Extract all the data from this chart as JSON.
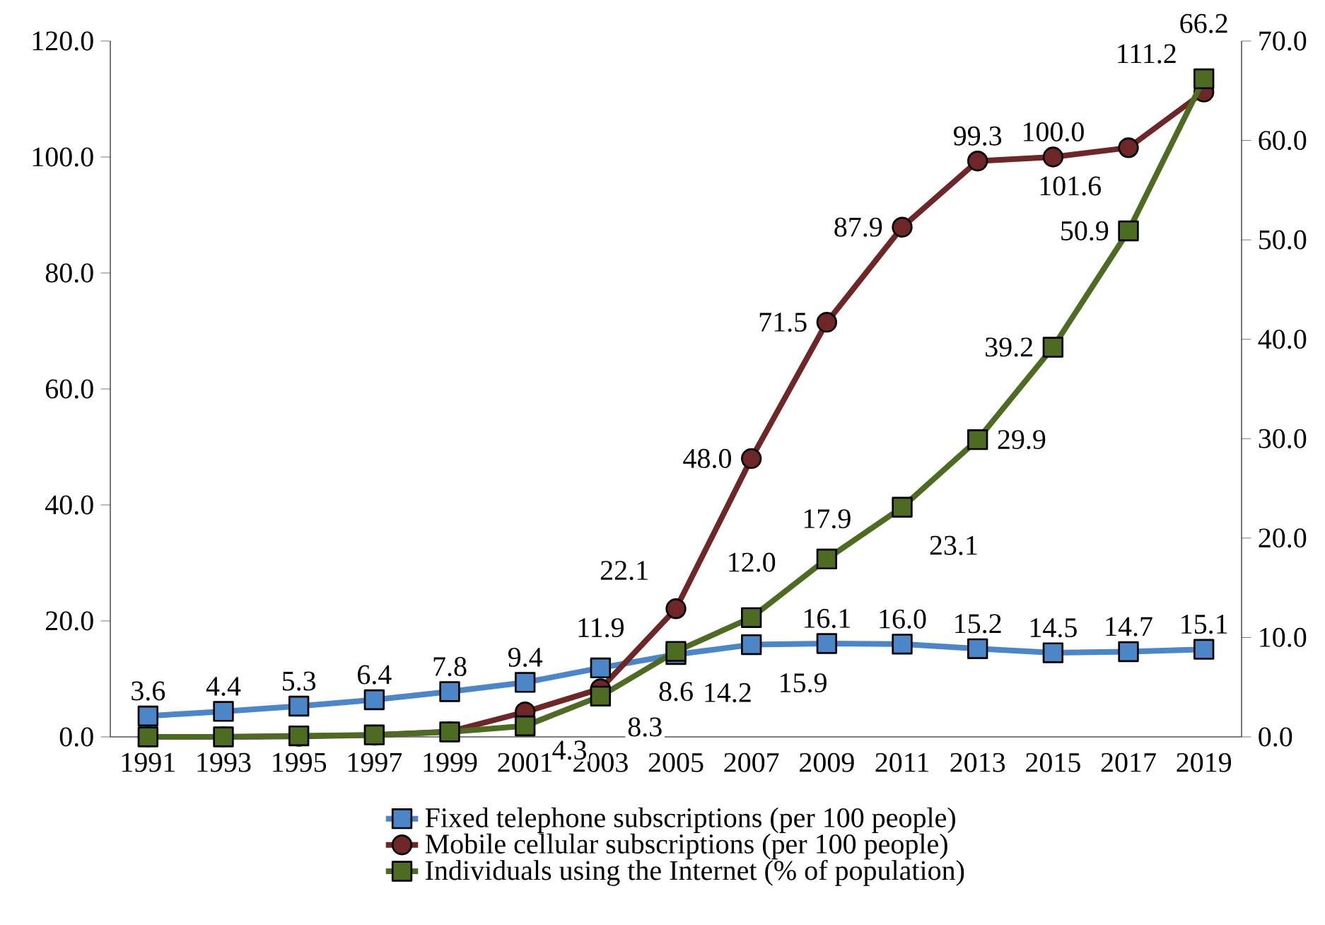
{
  "chart_data": {
    "type": "line",
    "categories": [
      "1991",
      "1993",
      "1995",
      "1997",
      "1999",
      "2001",
      "2003",
      "2005",
      "2007",
      "2009",
      "2011",
      "2013",
      "2015",
      "2017",
      "2019"
    ],
    "series": [
      {
        "name": "Fixed telephone subscriptions (per 100 people)",
        "color": "#4a86c8",
        "marker": "square",
        "values": [
          3.6,
          4.4,
          5.3,
          6.4,
          7.8,
          9.4,
          11.9,
          14.2,
          15.9,
          16.1,
          16.0,
          15.2,
          14.5,
          14.7,
          15.1
        ],
        "value_labels": [
          "3.6",
          "4.4",
          "5.3",
          "6.4",
          "7.8",
          "9.4",
          "11.9",
          "14.2",
          "15.9",
          "16.1",
          "16.0",
          "15.2",
          "14.5",
          "14.7",
          "15.1"
        ]
      },
      {
        "name": "Mobile cellular subscriptions (per 100 people)",
        "color": "#6e2627",
        "marker": "circle",
        "values": [
          0.0,
          0.0,
          0.1,
          0.3,
          0.9,
          4.3,
          8.3,
          22.1,
          48.0,
          71.5,
          87.9,
          99.3,
          100.0,
          101.6,
          111.2
        ],
        "value_labels": [
          null,
          null,
          null,
          null,
          null,
          "4.3",
          "8.3",
          "22.1",
          "48.0",
          "71.5",
          "87.9",
          "99.3",
          "100.0",
          "101.6",
          "111.2"
        ]
      },
      {
        "name": "Individuals using the Internet (% of population)",
        "color": "#4e6b22",
        "marker": "square",
        "axis": "y2",
        "values": [
          0.0,
          0.0,
          0.1,
          0.2,
          0.5,
          1.1,
          4.1,
          8.6,
          12.0,
          17.9,
          23.1,
          29.9,
          39.2,
          50.9,
          66.2
        ],
        "value_labels": [
          null,
          null,
          null,
          null,
          null,
          null,
          null,
          "8.6",
          "12.0",
          "17.9",
          "23.1",
          "29.9",
          "39.2",
          "50.9",
          "66.2"
        ]
      }
    ],
    "ylim": [
      0,
      120
    ],
    "yticks": [
      {
        "value": 0,
        "label": "0.0"
      },
      {
        "value": 20,
        "label": "20.0"
      },
      {
        "value": 40,
        "label": "40.0"
      },
      {
        "value": 60,
        "label": "60.0"
      },
      {
        "value": 80,
        "label": "80.0"
      },
      {
        "value": 100,
        "label": "100.0"
      },
      {
        "value": 120,
        "label": "120.0"
      }
    ],
    "y2lim": [
      0,
      70
    ],
    "y2ticks": [
      {
        "value": 0,
        "label": "0.0"
      },
      {
        "value": 10,
        "label": "10.0"
      },
      {
        "value": 20,
        "label": "20.0"
      },
      {
        "value": 30,
        "label": "30.0"
      },
      {
        "value": 40,
        "label": "40.0"
      },
      {
        "value": 50,
        "label": "50.0"
      },
      {
        "value": 60,
        "label": "60.0"
      },
      {
        "value": 70,
        "label": "70.0"
      }
    ],
    "line_style": "solid",
    "grid": false,
    "legend": "bottom"
  }
}
